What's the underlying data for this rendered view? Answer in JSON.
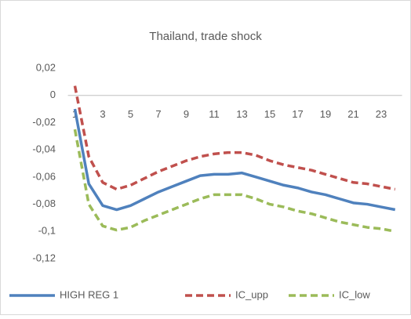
{
  "chart_data": {
    "type": "line",
    "title": "Thailand, trade shock",
    "categories": [
      "1",
      null,
      "3",
      null,
      "5",
      null,
      "7",
      null,
      "9",
      null,
      "11",
      null,
      "13",
      null,
      "15",
      null,
      "17",
      null,
      "19",
      null,
      "21",
      null,
      "23",
      null
    ],
    "series": [
      {
        "name": "HIGH REG 1",
        "color": "#4f81bd",
        "dash": false,
        "values": [
          -0.01,
          -0.065,
          -0.081,
          -0.084,
          -0.081,
          -0.076,
          -0.071,
          -0.067,
          -0.063,
          -0.059,
          -0.058,
          -0.058,
          -0.057,
          -0.06,
          -0.063,
          -0.066,
          -0.068,
          -0.071,
          -0.073,
          -0.076,
          -0.079,
          -0.08,
          -0.082,
          -0.084
        ]
      },
      {
        "name": "IC_upp",
        "color": "#c0504d",
        "dash": true,
        "values": [
          0.007,
          -0.045,
          -0.064,
          -0.069,
          -0.066,
          -0.061,
          -0.056,
          -0.052,
          -0.048,
          -0.045,
          -0.043,
          -0.042,
          -0.042,
          -0.044,
          -0.048,
          -0.051,
          -0.053,
          -0.055,
          -0.058,
          -0.061,
          -0.064,
          -0.065,
          -0.067,
          -0.069
        ]
      },
      {
        "name": "IC_low",
        "color": "#9bbb59",
        "dash": true,
        "values": [
          -0.025,
          -0.08,
          -0.096,
          -0.099,
          -0.097,
          -0.092,
          -0.088,
          -0.084,
          -0.08,
          -0.076,
          -0.073,
          -0.073,
          -0.073,
          -0.076,
          -0.08,
          -0.082,
          -0.085,
          -0.087,
          -0.09,
          -0.093,
          -0.095,
          -0.097,
          -0.098,
          -0.1
        ]
      }
    ],
    "ylim": [
      -0.12,
      0.02
    ],
    "yticks": [
      {
        "value": 0.02,
        "label": "0,02"
      },
      0,
      {
        "value": -0.02,
        "label": "-0,02"
      },
      {
        "value": -0.04,
        "label": "-0,04"
      },
      {
        "value": -0.06,
        "label": "-0,06"
      },
      {
        "value": -0.08,
        "label": "-0,08"
      },
      {
        "value": -0.1,
        "label": "-0,1"
      },
      {
        "value": -0.12,
        "label": "-0,12"
      }
    ],
    "grid": false,
    "legend": "bottom"
  }
}
